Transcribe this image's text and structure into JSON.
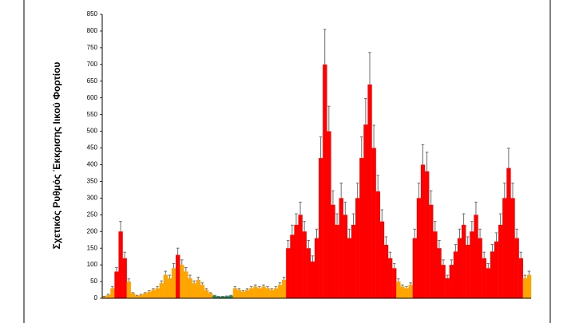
{
  "chart_data": {
    "type": "bar",
    "y_label": "Σχετικός Ρυθμός Έκκρισης Ιικού Φορτίου",
    "ylim": [
      0,
      850
    ],
    "yticks": [
      0,
      50,
      100,
      150,
      200,
      250,
      300,
      350,
      400,
      450,
      500,
      550,
      600,
      650,
      700,
      750,
      800,
      850
    ],
    "categories": [
      null,
      null,
      null,
      null,
      null,
      null,
      null,
      null,
      null,
      null,
      null,
      null,
      null,
      null,
      null,
      null,
      null,
      null,
      null,
      null,
      null,
      null,
      null,
      null,
      null,
      null,
      null,
      null,
      null,
      null,
      null,
      null,
      null,
      null,
      null,
      null,
      null,
      null,
      null,
      null,
      null,
      null,
      null,
      null,
      null,
      null,
      null,
      null,
      null,
      null,
      null,
      null,
      null,
      null,
      null,
      null,
      null,
      null,
      null,
      null,
      null,
      null,
      null,
      null,
      null,
      null,
      null,
      null,
      null,
      null,
      null,
      null,
      null,
      null,
      null,
      null,
      null,
      null,
      null,
      null,
      null,
      null,
      null,
      null,
      null,
      null,
      null,
      null,
      null,
      null,
      null,
      null,
      null,
      null,
      null,
      null,
      null,
      null,
      null,
      null,
      null,
      null,
      null,
      null,
      null
    ],
    "values": [
      5,
      10,
      30,
      80,
      200,
      120,
      50,
      15,
      8,
      10,
      15,
      20,
      25,
      30,
      45,
      70,
      60,
      90,
      130,
      100,
      80,
      60,
      45,
      55,
      40,
      25,
      15,
      8,
      5,
      5,
      6,
      8,
      30,
      25,
      20,
      25,
      30,
      35,
      30,
      35,
      30,
      25,
      30,
      40,
      55,
      150,
      190,
      220,
      250,
      200,
      150,
      110,
      180,
      420,
      700,
      500,
      280,
      220,
      300,
      250,
      180,
      220,
      300,
      420,
      520,
      640,
      450,
      320,
      230,
      160,
      120,
      90,
      50,
      35,
      30,
      40,
      180,
      300,
      400,
      380,
      280,
      200,
      150,
      100,
      60,
      100,
      140,
      180,
      220,
      160,
      200,
      250,
      180,
      120,
      90,
      140,
      170,
      220,
      300,
      390,
      300,
      180,
      120,
      60,
      70
    ],
    "errors": [
      1,
      2,
      5,
      12,
      30,
      18,
      8,
      2,
      1,
      2,
      2,
      3,
      4,
      5,
      7,
      11,
      9,
      14,
      20,
      15,
      12,
      9,
      7,
      8,
      6,
      4,
      2,
      1,
      1,
      1,
      1,
      1,
      5,
      4,
      3,
      4,
      5,
      5,
      5,
      5,
      5,
      4,
      5,
      6,
      8,
      23,
      29,
      33,
      38,
      30,
      23,
      17,
      27,
      63,
      105,
      75,
      42,
      33,
      45,
      38,
      27,
      33,
      45,
      63,
      78,
      96,
      68,
      48,
      35,
      24,
      18,
      14,
      8,
      5,
      5,
      6,
      27,
      45,
      60,
      57,
      42,
      30,
      23,
      15,
      9,
      15,
      21,
      27,
      33,
      24,
      30,
      38,
      27,
      18,
      14,
      21,
      26,
      33,
      45,
      59,
      45,
      27,
      18,
      9,
      11
    ],
    "colors": [
      "#ffa500",
      "#ffa500",
      "#ffa500",
      "#ff0000",
      "#ff0000",
      "#ff0000",
      "#ffa500",
      "#ffa500",
      "#ffa500",
      "#ffa500",
      "#ffa500",
      "#ffa500",
      "#ffa500",
      "#ffa500",
      "#ffa500",
      "#ffa500",
      "#ffa500",
      "#ffa500",
      "#ff0000",
      "#ffa500",
      "#ffa500",
      "#ffa500",
      "#ffa500",
      "#ffa500",
      "#ffa500",
      "#ffa500",
      "#ffa500",
      "#2e8b57",
      "#2e8b57",
      "#2e8b57",
      "#2e8b57",
      "#2e8b57",
      "#ffa500",
      "#ffa500",
      "#ffa500",
      "#ffa500",
      "#ffa500",
      "#ffa500",
      "#ffa500",
      "#ffa500",
      "#ffa500",
      "#ffa500",
      "#ffa500",
      "#ffa500",
      "#ffa500",
      "#ff0000",
      "#ff0000",
      "#ff0000",
      "#ff0000",
      "#ff0000",
      "#ff0000",
      "#ff0000",
      "#ff0000",
      "#ff0000",
      "#ff0000",
      "#ff0000",
      "#ff0000",
      "#ff0000",
      "#ff0000",
      "#ff0000",
      "#ff0000",
      "#ff0000",
      "#ff0000",
      "#ff0000",
      "#ff0000",
      "#ff0000",
      "#ff0000",
      "#ff0000",
      "#ff0000",
      "#ff0000",
      "#ff0000",
      "#ff0000",
      "#ffa500",
      "#ffa500",
      "#ffa500",
      "#ffa500",
      "#ff0000",
      "#ff0000",
      "#ff0000",
      "#ff0000",
      "#ff0000",
      "#ff0000",
      "#ff0000",
      "#ff0000",
      "#ff0000",
      "#ff0000",
      "#ff0000",
      "#ff0000",
      "#ff0000",
      "#ff0000",
      "#ff0000",
      "#ff0000",
      "#ff0000",
      "#ff0000",
      "#ff0000",
      "#ff0000",
      "#ff0000",
      "#ff0000",
      "#ff0000",
      "#ff0000",
      "#ff0000",
      "#ff0000",
      "#ff0000",
      "#ffa500",
      "#ffa500"
    ],
    "error_color": "#6e6e6e",
    "grid": false
  }
}
